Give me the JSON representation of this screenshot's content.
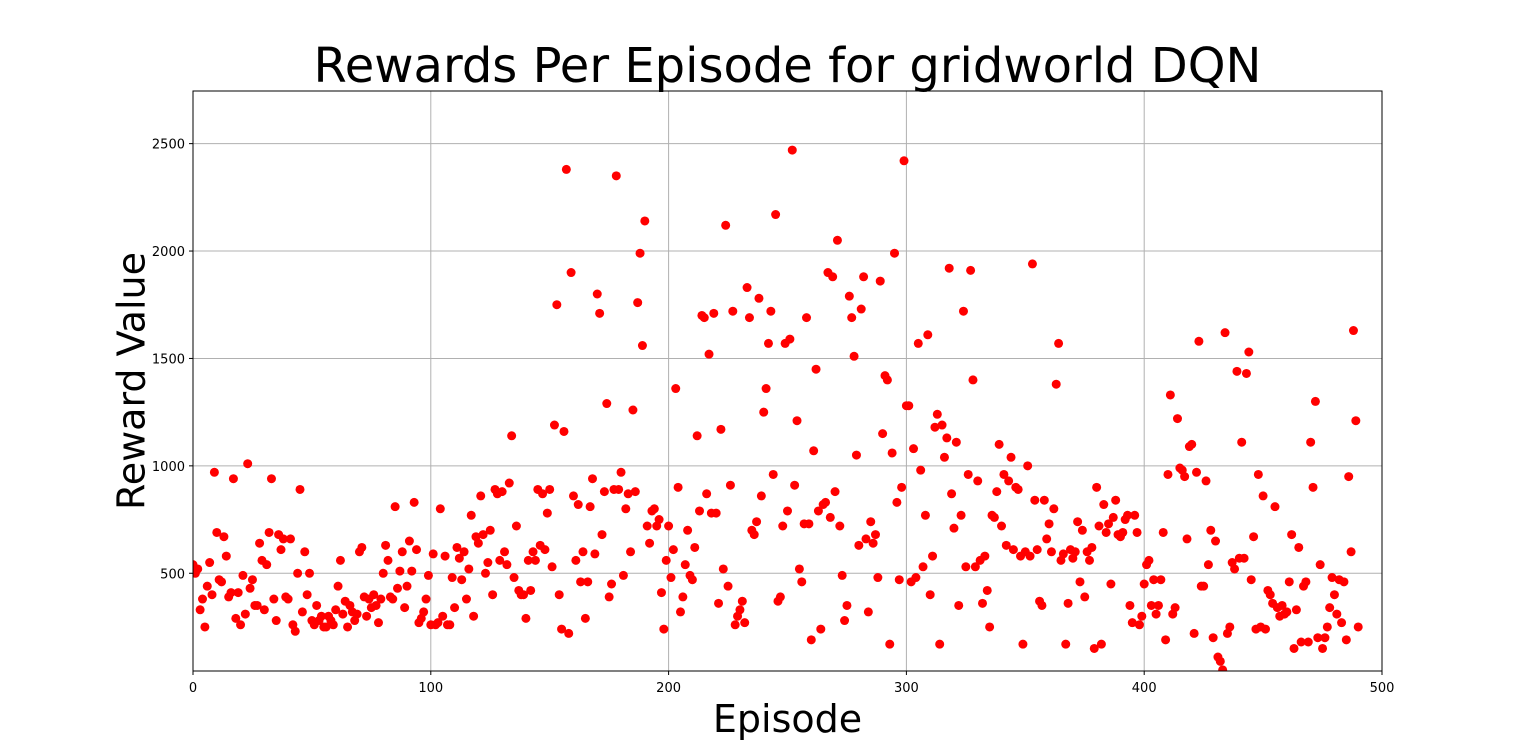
{
  "chart_data": {
    "type": "scatter",
    "title": "Rewards Per Episode for gridworld DQN",
    "xlabel": "Episode",
    "ylabel": "Reward Value",
    "xlim": [
      0,
      500
    ],
    "ylim": [
      45,
      2745
    ],
    "x_ticks": [
      0,
      100,
      200,
      300,
      400,
      500
    ],
    "y_ticks": [
      500,
      1000,
      1500,
      2000,
      2500
    ],
    "grid": true,
    "legend": "none",
    "marker_color": "#ff0000",
    "series": [
      {
        "values": [
          540,
          500,
          520,
          330,
          380,
          250,
          440,
          550,
          400,
          970,
          690,
          470,
          460,
          670,
          580,
          390,
          410,
          940,
          290,
          410,
          260,
          490,
          310,
          1010,
          430,
          470,
          350,
          350,
          640,
          560,
          330,
          540,
          690,
          940,
          380,
          280,
          680,
          610,
          660,
          390,
          380,
          660,
          260,
          230,
          500,
          890,
          320,
          600,
          400,
          500,
          280,
          260,
          350,
          280,
          300,
          250,
          250,
          300,
          280,
          260,
          330,
          440,
          560,
          310,
          370,
          250,
          350,
          320,
          280,
          310,
          600,
          620,
          390,
          300,
          380,
          340,
          400,
          350,
          270,
          380,
          500,
          630,
          560,
          390,
          380,
          810,
          430,
          510,
          600,
          340,
          440,
          650,
          510,
          830,
          610,
          270,
          290,
          320,
          380,
          490,
          260,
          590,
          260,
          270,
          800,
          300,
          580,
          260,
          260,
          480,
          340,
          620,
          570,
          470,
          600,
          380,
          520,
          770,
          300,
          670,
          640,
          860,
          680,
          500,
          550,
          700,
          400,
          890,
          870,
          560,
          880,
          600,
          540,
          920,
          1140,
          480,
          720,
          420,
          400,
          400,
          290,
          560,
          420,
          600,
          560,
          890,
          630,
          870,
          610,
          780,
          890,
          530,
          1190,
          1750,
          400,
          240,
          1160,
          2380,
          220,
          1900,
          860,
          560,
          820,
          460,
          600,
          290,
          460,
          810,
          940,
          590,
          1800,
          1710,
          680,
          880,
          1290,
          390,
          450,
          890,
          2350,
          890,
          970,
          490,
          800,
          870,
          600,
          1260,
          880,
          1760,
          1990,
          1560,
          2140,
          720,
          640,
          790,
          800,
          720,
          750,
          410,
          240,
          560,
          720,
          480,
          610,
          1360,
          900,
          320,
          390,
          540,
          700,
          490,
          470,
          620,
          1140,
          790,
          1700,
          1690,
          870,
          1520,
          780,
          1710,
          780,
          360,
          1170,
          520,
          2120,
          440,
          910,
          1720,
          260,
          300,
          330,
          370,
          270,
          1830,
          1690,
          700,
          680,
          740,
          1780,
          860,
          1250,
          1360,
          1570,
          1720,
          960,
          2170,
          370,
          390,
          720,
          1570,
          790,
          1590,
          2470,
          910,
          1210,
          520,
          460,
          730,
          1690,
          730,
          190,
          1070,
          1450,
          790,
          240,
          820,
          830,
          1900,
          760,
          1880,
          880,
          2050,
          720,
          490,
          280,
          350,
          1790,
          1690,
          1510,
          1050,
          630,
          1730,
          1880,
          660,
          320,
          740,
          640,
          680,
          480,
          1860,
          1150,
          1420,
          1400,
          170,
          1060,
          1990,
          830,
          470,
          900,
          2420,
          1280,
          1280,
          460,
          1080,
          480,
          1570,
          980,
          530,
          770,
          1610,
          400,
          580,
          1180,
          1240,
          170,
          1190,
          1040,
          1130,
          1920,
          870,
          710,
          1110,
          350,
          770,
          1720,
          530,
          960,
          1910,
          1400,
          530,
          930,
          560,
          360,
          580,
          420,
          250,
          770,
          760,
          880,
          1100,
          720,
          960,
          630,
          930,
          1040,
          610,
          900,
          890,
          580,
          170,
          600,
          1000,
          580,
          1940,
          840,
          610,
          370,
          350,
          840,
          660,
          730,
          600,
          800,
          1380,
          1570,
          560,
          590,
          170,
          360,
          610,
          570,
          600,
          740,
          460,
          700,
          390,
          600,
          560,
          620,
          150,
          900,
          720,
          170,
          820,
          690,
          730,
          450,
          760,
          840,
          680,
          670,
          690,
          750,
          770,
          350,
          270,
          770,
          690,
          260,
          300,
          450,
          540,
          560,
          350,
          470,
          310,
          350,
          470,
          690,
          190,
          960,
          1330,
          310,
          340,
          1220,
          990,
          980,
          950,
          660,
          1090,
          1100,
          220,
          970,
          1580,
          440,
          440,
          930,
          540,
          700,
          200,
          650,
          110,
          90,
          50,
          1620,
          220,
          250,
          550,
          520,
          1440,
          570,
          1110,
          570,
          1430,
          1530,
          470,
          670,
          240,
          960,
          250,
          860,
          240,
          420,
          400,
          360,
          810,
          340,
          300,
          350,
          310,
          320,
          460,
          680,
          150,
          330,
          620,
          180,
          440,
          460,
          180,
          1110,
          900,
          1300,
          200,
          540,
          150,
          200,
          250,
          340,
          480,
          400,
          310,
          470,
          270,
          460,
          190,
          950,
          600,
          1630,
          1210,
          250
        ]
      }
    ]
  }
}
